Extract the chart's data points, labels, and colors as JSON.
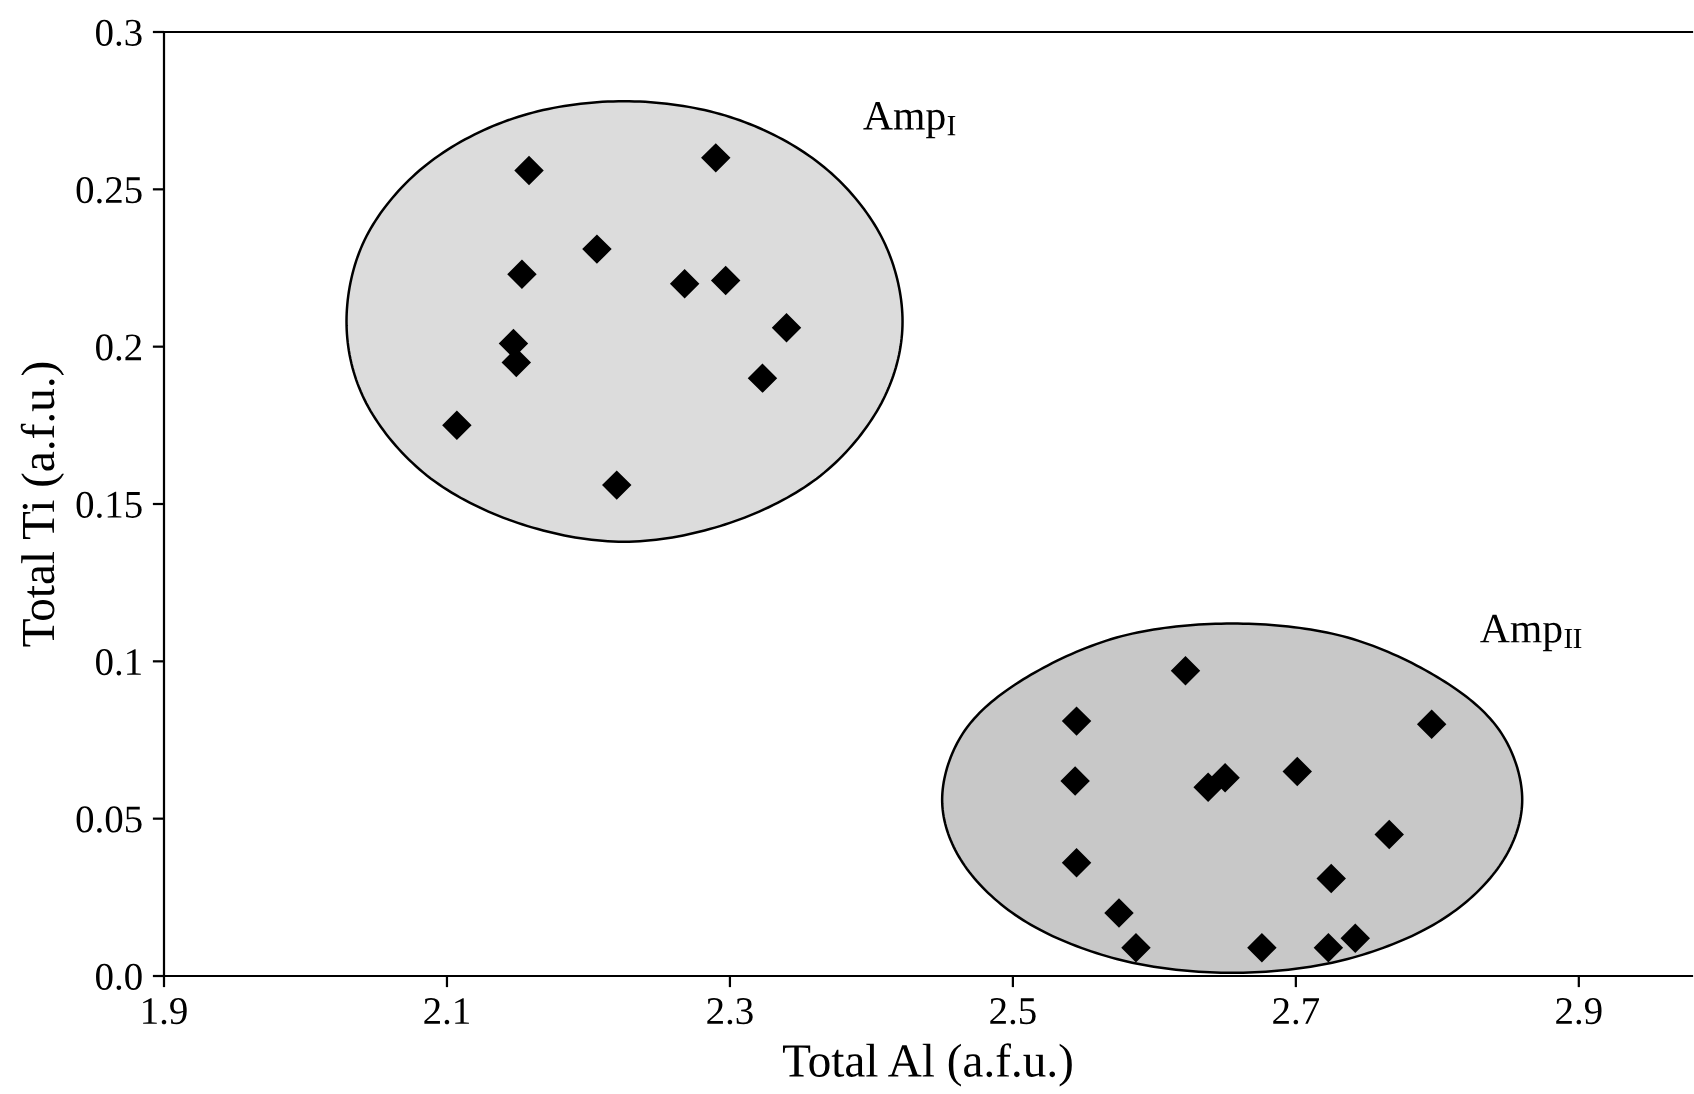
{
  "chart_data": {
    "type": "scatter",
    "xlabel": "Total Al (a.f.u.)",
    "ylabel": "Total Ti (a.f.u.)",
    "xlim": [
      1.9,
      2.98
    ],
    "xticks": [
      1.9,
      2.1,
      2.3,
      2.5,
      2.7,
      2.9
    ],
    "ylim": [
      0,
      0.3
    ],
    "yticks": [
      {
        "value": 0,
        "label": "0.0"
      },
      0.05,
      0.1,
      0.15,
      0.2,
      0.25,
      0.3
    ],
    "grid": false,
    "legend": false,
    "marker": "diamond",
    "series": [
      {
        "type": "area",
        "marker": "none",
        "name": "Amp$_{I}$",
        "color": "#dcdcdc",
        "x": [
          2.422,
          2.407,
          2.364,
          2.3,
          2.225,
          2.15,
          2.086,
          2.043,
          2.029,
          2.043,
          2.086,
          2.15,
          2.225,
          2.3,
          2.364,
          2.407,
          2.422
        ],
        "values": [
          0.208,
          0.235,
          0.258,
          0.273,
          0.278,
          0.273,
          0.258,
          0.235,
          0.208,
          0.182,
          0.159,
          0.144,
          0.138,
          0.144,
          0.159,
          0.182,
          0.208
        ]
      },
      {
        "type": "area",
        "marker": "none",
        "name": "Amp$_{II}$",
        "color": "#c8c8c8",
        "x": [
          2.86,
          2.844,
          2.8,
          2.733,
          2.655,
          2.577,
          2.51,
          2.466,
          2.45,
          2.466,
          2.51,
          2.577,
          2.655,
          2.733,
          2.8,
          2.844,
          2.86
        ],
        "values": [
          0.056,
          0.078,
          0.095,
          0.108,
          0.112,
          0.108,
          0.095,
          0.078,
          0.056,
          0.035,
          0.017,
          0.005,
          0.001,
          0.005,
          0.017,
          0.035,
          0.056
        ]
      },
      {
        "color": "#000000",
        "x": [
          2.158,
          2.29,
          2.206,
          2.153,
          2.268,
          2.297,
          2.34,
          2.147,
          2.149,
          2.323,
          2.107,
          2.22
        ],
        "values": [
          0.256,
          0.26,
          0.231,
          0.223,
          0.22,
          0.221,
          0.206,
          0.201,
          0.195,
          0.19,
          0.175,
          0.156
        ]
      },
      {
        "color": "#000000",
        "x": [
          2.622,
          2.545,
          2.796,
          2.544,
          2.65,
          2.638,
          2.701,
          2.766,
          2.545,
          2.725,
          2.575,
          2.587,
          2.676,
          2.723,
          2.742
        ],
        "values": [
          0.097,
          0.081,
          0.08,
          0.062,
          0.063,
          0.06,
          0.065,
          0.045,
          0.036,
          0.031,
          0.02,
          0.009,
          0.009,
          0.009,
          0.012
        ]
      }
    ]
  }
}
